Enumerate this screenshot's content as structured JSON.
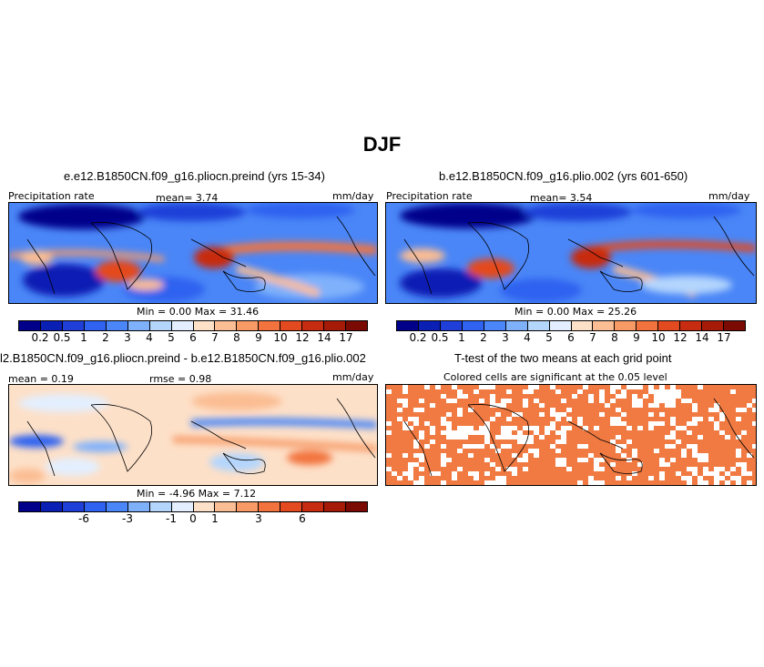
{
  "title": "DJF",
  "panels": {
    "p1": {
      "title": "e.e12.B1850CN.f09_g16.pliocn.preind (yrs 15-34)",
      "left_label": "Precipitation rate",
      "mean": "mean=    3.74",
      "units": "mm/day",
      "minmax": "Min =    0.00  Max =   31.46"
    },
    "p2": {
      "title": "b.e12.B1850CN.f09_g16.plio.002 (yrs 601-650)",
      "left_label": "Precipitation rate",
      "mean": "mean=    3.54",
      "units": "mm/day",
      "minmax": "Min =    0.00  Max =   25.26"
    },
    "p3": {
      "title": "l2.B1850CN.f09_g16.pliocn.preind - b.e12.B1850CN.f09_g16.plio.002",
      "left_label": "mean =   0.19",
      "mean": "rmse =   0.98",
      "units": "mm/day",
      "minmax": "Min =   -4.96  Max =    7.12"
    },
    "p4": {
      "title": "T-test of the two means at each grid point",
      "subtitle": "Colored cells are significant at the 0.05 level"
    }
  },
  "colorbar_abs": {
    "colors": [
      "#00008b",
      "#0a1fb4",
      "#1f3fd8",
      "#2f62f0",
      "#4a86f7",
      "#7fb1fb",
      "#b4d6fd",
      "#e3efff",
      "#fde0c8",
      "#fbbd93",
      "#f79a66",
      "#f2733e",
      "#e44a1f",
      "#c72c10",
      "#a61a08",
      "#7a0a02"
    ],
    "labels": [
      "0.2",
      "0.5",
      "1",
      "2",
      "3",
      "4",
      "5",
      "6",
      "7",
      "8",
      "9",
      "10",
      "12",
      "14",
      "17"
    ]
  },
  "colorbar_diff": {
    "colors": [
      "#00008b",
      "#0a1fb4",
      "#1f3fd8",
      "#2f62f0",
      "#4a86f7",
      "#7fb1fb",
      "#b4d6fd",
      "#e3efff",
      "#fde0c8",
      "#fbbd93",
      "#f79a66",
      "#f2733e",
      "#e44a1f",
      "#c72c10",
      "#a61a08",
      "#7a0a02"
    ],
    "labels": [
      "-6",
      "-3",
      "-1",
      "0",
      "1",
      "3",
      "6"
    ],
    "label_positions": [
      3,
      5,
      7,
      8,
      9,
      11,
      13
    ]
  },
  "significance_color": "#f07a42"
}
